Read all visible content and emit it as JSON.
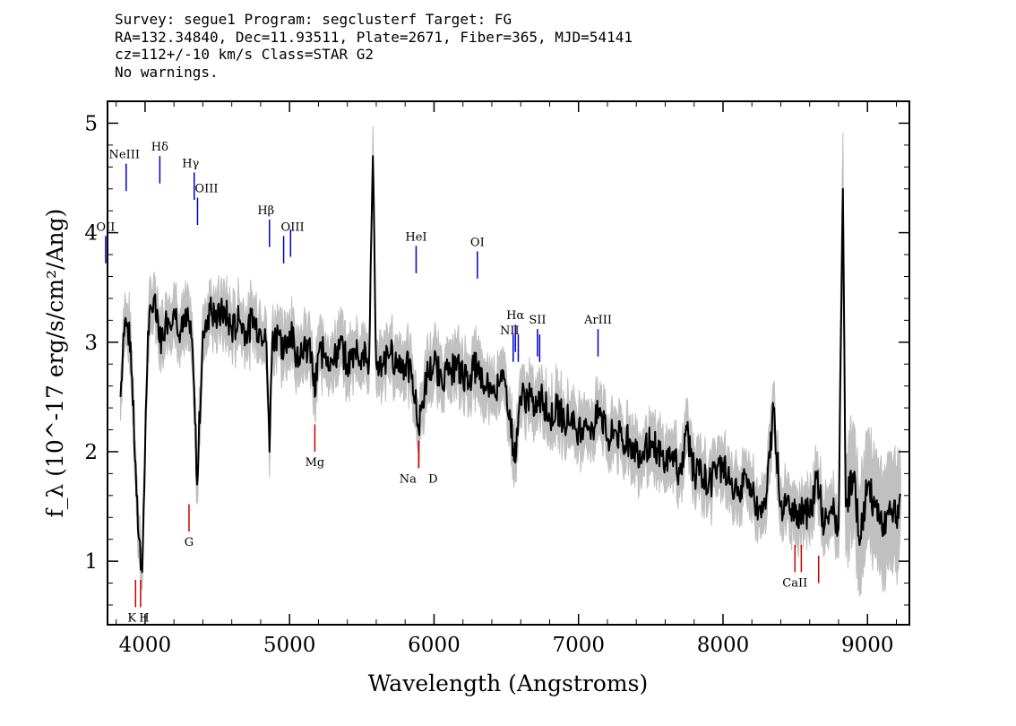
{
  "header": {
    "line1": "Survey: segue1 Program: segclusterf Target: FG",
    "line2": "RA=132.34840, Dec=11.93511, Plate=2671, Fiber=365, MJD=54141",
    "line3": "cz=112+/-10 km/s Class=STAR G2",
    "line4": "No warnings."
  },
  "chart_data": {
    "type": "line",
    "title": "",
    "xlabel": "Wavelength (Angstroms)",
    "ylabel": "f_λ (10^-17 erg/s/cm²/Ang)",
    "xlim": [
      3740,
      9290
    ],
    "ylim": [
      0.42,
      5.2
    ],
    "xticks": [
      4000,
      5000,
      6000,
      7000,
      8000,
      9000
    ],
    "yticks": [
      1,
      2,
      3,
      4,
      5
    ],
    "grid": false,
    "colors": {
      "flux": "#000000",
      "error_band": "#c0c0c0",
      "emission": "#0000cc",
      "absorption": "#cc0000"
    },
    "series": [
      {
        "name": "",
        "x": [
          3830,
          3860,
          3900,
          3950,
          3980,
          4020,
          4060,
          4100,
          4150,
          4200,
          4250,
          4300,
          4330,
          4360,
          4400,
          4450,
          4500,
          4550,
          4600,
          4650,
          4700,
          4750,
          4800,
          4840,
          4861,
          4880,
          4920,
          4960,
          5000,
          5050,
          5100,
          5150,
          5175,
          5200,
          5250,
          5300,
          5350,
          5400,
          5450,
          5500,
          5550,
          5577,
          5600,
          5650,
          5700,
          5750,
          5800,
          5850,
          5893,
          5950,
          6000,
          6050,
          6100,
          6150,
          6200,
          6250,
          6300,
          6350,
          6400,
          6450,
          6500,
          6563,
          6600,
          6650,
          6700,
          6750,
          6800,
          6850,
          6900,
          6950,
          7000,
          7050,
          7100,
          7150,
          7200,
          7250,
          7300,
          7350,
          7400,
          7450,
          7500,
          7550,
          7600,
          7650,
          7700,
          7750,
          7800,
          7850,
          7900,
          7950,
          8000,
          8050,
          8100,
          8150,
          8200,
          8250,
          8300,
          8350,
          8400,
          8450,
          8500,
          8550,
          8600,
          8650,
          8700,
          8750,
          8800,
          8830,
          8850,
          8900,
          8950,
          9000,
          9050,
          9100,
          9150,
          9200,
          9230
        ],
        "y": [
          2.5,
          3.2,
          3.0,
          1.3,
          0.9,
          3.1,
          3.4,
          3.0,
          3.2,
          3.3,
          3.1,
          3.2,
          2.9,
          1.7,
          3.1,
          3.3,
          3.2,
          3.3,
          3.1,
          3.2,
          3.1,
          3.2,
          3.1,
          3.0,
          2.0,
          3.0,
          3.1,
          2.9,
          3.1,
          2.9,
          3.0,
          2.9,
          2.5,
          2.9,
          2.9,
          2.8,
          3.0,
          2.8,
          2.9,
          2.9,
          2.8,
          4.7,
          2.8,
          2.8,
          2.9,
          2.8,
          2.8,
          2.7,
          2.2,
          2.7,
          2.8,
          2.7,
          2.7,
          2.8,
          2.7,
          2.7,
          2.8,
          2.6,
          2.6,
          2.6,
          2.6,
          1.9,
          2.5,
          2.5,
          2.4,
          2.5,
          2.3,
          2.4,
          2.3,
          2.3,
          2.2,
          2.3,
          2.2,
          2.4,
          2.1,
          2.2,
          2.1,
          2.1,
          2.0,
          2.0,
          2.1,
          2.0,
          1.9,
          2.0,
          1.8,
          2.2,
          1.8,
          1.8,
          1.7,
          1.8,
          1.9,
          1.7,
          1.6,
          1.8,
          1.6,
          1.5,
          1.6,
          2.4,
          1.5,
          1.6,
          1.4,
          1.5,
          1.4,
          1.8,
          1.3,
          1.5,
          1.3,
          4.4,
          1.5,
          1.8,
          1.2,
          1.7,
          1.5,
          1.3,
          1.5,
          1.4,
          1.6
        ]
      }
    ],
    "emission_lines": [
      {
        "label": "NeIII",
        "wavelength": 3869,
        "y_top": 4.63,
        "y_bottom": 4.38
      },
      {
        "label": "OII",
        "wavelength": 3727,
        "y_top": 3.97,
        "y_bottom": 3.72
      },
      {
        "label": "Hδ",
        "wavelength": 4102,
        "y_top": 4.7,
        "y_bottom": 4.45
      },
      {
        "label": "Hγ",
        "wavelength": 4340,
        "y_top": 4.55,
        "y_bottom": 4.3
      },
      {
        "label": "OIII",
        "wavelength": 4363,
        "y_top": 4.32,
        "y_bottom": 4.07
      },
      {
        "label": "Hβ",
        "wavelength": 4861,
        "y_top": 4.12,
        "y_bottom": 3.87
      },
      {
        "label": "OIII",
        "wavelength": 4959,
        "y_top": 3.97,
        "y_bottom": 3.72
      },
      {
        "label": "OIII",
        "wavelength": 5007,
        "y_top": 4.03,
        "y_bottom": 3.78
      },
      {
        "label": "HeI",
        "wavelength": 5876,
        "y_top": 3.88,
        "y_bottom": 3.63
      },
      {
        "label": "OI",
        "wavelength": 6300,
        "y_top": 3.83,
        "y_bottom": 3.58
      },
      {
        "label": "NII",
        "wavelength": 6548,
        "y_top": 3.07,
        "y_bottom": 2.82
      },
      {
        "label": "Hα",
        "wavelength": 6563,
        "y_top": 3.16,
        "y_bottom": 2.91
      },
      {
        "label": "NII",
        "wavelength": 6583,
        "y_top": 3.07,
        "y_bottom": 2.82
      },
      {
        "label": "SII",
        "wavelength": 6716,
        "y_top": 3.12,
        "y_bottom": 2.87
      },
      {
        "label": "SII",
        "wavelength": 6731,
        "y_top": 3.07,
        "y_bottom": 2.82
      },
      {
        "label": "ArIII",
        "wavelength": 7135,
        "y_top": 3.12,
        "y_bottom": 2.87
      }
    ],
    "absorption_lines": [
      {
        "label": "K",
        "wavelength": 3934,
        "y_top": 0.83,
        "y_bottom": 0.58
      },
      {
        "label": "H",
        "wavelength": 3969,
        "y_top": 0.83,
        "y_bottom": 0.58
      },
      {
        "label": "G",
        "wavelength": 4304,
        "y_top": 1.52,
        "y_bottom": 1.27
      },
      {
        "label": "Mg",
        "wavelength": 5175,
        "y_top": 2.25,
        "y_bottom": 2.0
      },
      {
        "label": "Na",
        "wavelength": 5894,
        "y_top": 2.1,
        "y_bottom": 1.85
      },
      {
        "label": "D",
        "wavelength": 5894,
        "y_top": 2.1,
        "y_bottom": 1.85
      },
      {
        "label": "CaII",
        "wavelength": 8498,
        "y_top": 1.15,
        "y_bottom": 0.9
      },
      {
        "label": "CaII",
        "wavelength": 8542,
        "y_top": 1.15,
        "y_bottom": 0.9
      },
      {
        "label": "CaII",
        "wavelength": 8662,
        "y_top": 1.05,
        "y_bottom": 0.8
      }
    ]
  }
}
